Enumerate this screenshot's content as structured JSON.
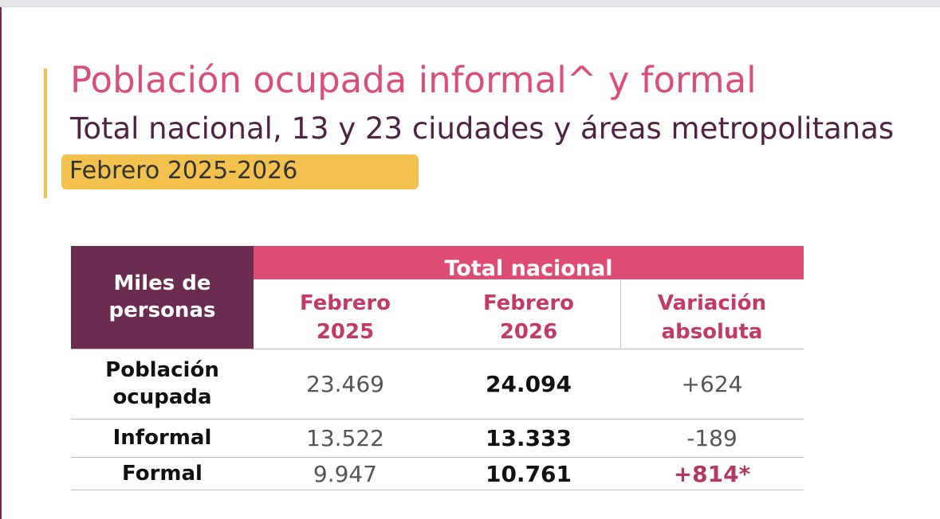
{
  "title": "Población ocupada informal^ y formal",
  "subtitle": "Total nacional, 13 y 23 ciudades y áreas metropolitanas",
  "period": "Febrero 2025-2026",
  "table": {
    "corner_header": "Miles de personas",
    "group_header": "Total nacional",
    "columns": [
      "Febrero 2025",
      "Febrero 2026",
      "Variación absoluta"
    ],
    "rows": [
      {
        "label": "Población ocupada",
        "feb_2025": "23.469",
        "feb_2026": "24.094",
        "variacion": "+624"
      },
      {
        "label": "Informal",
        "feb_2025": "13.522",
        "feb_2026": "13.333",
        "variacion": "-189"
      },
      {
        "label": "Formal",
        "feb_2025": "9.947",
        "feb_2026": "10.761",
        "variacion": "+814*"
      }
    ]
  },
  "colors": {
    "title": "#d94f7c",
    "subtitle": "#4f2342",
    "badge": "#f2c14e",
    "header_dark": "#6b2c4f",
    "header_pink": "#de4b73",
    "column_header_text": "#c23a66",
    "highlight_value": "#b03a64"
  }
}
